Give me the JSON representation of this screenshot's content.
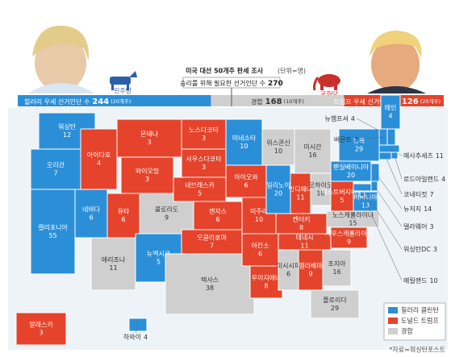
{
  "header": {
    "title": "미국 대선 50개주 판세 조사",
    "unit": "(단위=명)",
    "threshold_label": "승리를 위해 필요한 선거인단 수",
    "threshold": 270
  },
  "parties": [
    {
      "name": "민주당"
    },
    {
      "name": "공화당"
    }
  ],
  "summary": [
    {
      "label": "힐러리 우세 선거인단 수",
      "votes": 244,
      "states": "(20개주)",
      "color": "#2b8fd8"
    },
    {
      "label": "경합",
      "votes": 168,
      "states": "(10개주)",
      "color": "#cfcfcf"
    },
    {
      "label": "트럼프 우세 선거인단 수",
      "votes": 126,
      "states": "(20개주)",
      "color": "#e5432b"
    }
  ],
  "states": [
    {
      "name": "워싱턴",
      "votes": 12,
      "color": "#2b8fd8"
    },
    {
      "name": "오리건",
      "votes": 7,
      "color": "#2b8fd8"
    },
    {
      "name": "캘리포니아",
      "votes": 55,
      "color": "#2b8fd8"
    },
    {
      "name": "네바다",
      "votes": 6,
      "color": "#2b8fd8"
    },
    {
      "name": "아이다호",
      "votes": 4,
      "color": "#e5432b"
    },
    {
      "name": "몬태나",
      "votes": 3,
      "color": "#e5432b"
    },
    {
      "name": "와이오밍",
      "votes": 3,
      "color": "#e5432b"
    },
    {
      "name": "유타",
      "votes": 6,
      "color": "#e5432b"
    },
    {
      "name": "애리조나",
      "votes": 11,
      "color": "#cfcfcf"
    },
    {
      "name": "콜로라도",
      "votes": 9,
      "color": "#cfcfcf"
    },
    {
      "name": "뉴멕시코",
      "votes": 5,
      "color": "#2b8fd8"
    },
    {
      "name": "노스다코타",
      "votes": 3,
      "color": "#e5432b"
    },
    {
      "name": "사우스다코타",
      "votes": 3,
      "color": "#e5432b"
    },
    {
      "name": "네브래스카",
      "votes": 5,
      "color": "#e5432b"
    },
    {
      "name": "캔자스",
      "votes": 6,
      "color": "#e5432b"
    },
    {
      "name": "오클라호마",
      "votes": 7,
      "color": "#e5432b"
    },
    {
      "name": "텍사스",
      "votes": 38,
      "color": "#cfcfcf"
    },
    {
      "name": "미네소타",
      "votes": 10,
      "color": "#2b8fd8"
    },
    {
      "name": "아이오와",
      "votes": 6,
      "color": "#e5432b"
    },
    {
      "name": "미주리",
      "votes": 10,
      "color": "#e5432b"
    },
    {
      "name": "아칸소",
      "votes": 6,
      "color": "#e5432b"
    },
    {
      "name": "루이지애나",
      "votes": 8,
      "color": "#e5432b"
    },
    {
      "name": "위스콘신",
      "votes": 10,
      "color": "#cfcfcf"
    },
    {
      "name": "일리노이",
      "votes": 20,
      "color": "#2b8fd8"
    },
    {
      "name": "미시간",
      "votes": 16,
      "color": "#cfcfcf"
    },
    {
      "name": "인디애나",
      "votes": 11,
      "color": "#e5432b"
    },
    {
      "name": "오하이오",
      "votes": 18,
      "color": "#cfcfcf"
    },
    {
      "name": "켄터키",
      "votes": 8,
      "color": "#e5432b"
    },
    {
      "name": "테네시",
      "votes": 11,
      "color": "#e5432b"
    },
    {
      "name": "미시시피",
      "votes": 6,
      "color": "#cfcfcf"
    },
    {
      "name": "앨라배마",
      "votes": 9,
      "color": "#e5432b"
    },
    {
      "name": "조지아",
      "votes": 16,
      "color": "#cfcfcf"
    },
    {
      "name": "플로리다",
      "votes": 29,
      "color": "#cfcfcf"
    },
    {
      "name": "사우스캐롤라이나",
      "votes": 9,
      "color": "#e5432b"
    },
    {
      "name": "노스캐롤라이나",
      "votes": 15,
      "color": "#cfcfcf"
    },
    {
      "name": "버지니아",
      "votes": 13,
      "color": "#2b8fd8"
    },
    {
      "name": "웨스트버지니아",
      "votes": 5,
      "color": "#e5432b"
    },
    {
      "name": "펜실베이니아",
      "votes": 20,
      "color": "#2b8fd8"
    },
    {
      "name": "뉴욕",
      "votes": 29,
      "color": "#2b8fd8"
    },
    {
      "name": "메인",
      "votes": 4,
      "color": "#2b8fd8"
    },
    {
      "name": "뉴햄프셔",
      "votes": 4,
      "color": "#2b8fd8"
    },
    {
      "name": "버몬트",
      "votes": 3,
      "color": "#2b8fd8"
    },
    {
      "name": "매사추세츠",
      "votes": 11,
      "color": "#2b8fd8"
    },
    {
      "name": "로드아일랜드",
      "votes": 4,
      "color": "#2b8fd8"
    },
    {
      "name": "코네티컷",
      "votes": 7,
      "color": "#2b8fd8"
    },
    {
      "name": "뉴저지",
      "votes": 14,
      "color": "#2b8fd8"
    },
    {
      "name": "델라웨어",
      "votes": 3,
      "color": "#2b8fd8"
    },
    {
      "name": "워싱턴DC",
      "votes": 3,
      "color": "#2b8fd8"
    },
    {
      "name": "메릴랜드",
      "votes": 10,
      "color": "#2b8fd8"
    },
    {
      "name": "알래스카",
      "votes": 3,
      "color": "#e5432b"
    },
    {
      "name": "하와이",
      "votes": 4,
      "color": "#2b8fd8"
    }
  ],
  "legend": [
    {
      "label": "힐러리 클린턴",
      "color": "#2b8fd8"
    },
    {
      "label": "도널드 트럼프",
      "color": "#e5432b"
    },
    {
      "label": "경합",
      "color": "#cfcfcf"
    }
  ],
  "source": "*자료=워싱턴포스트"
}
